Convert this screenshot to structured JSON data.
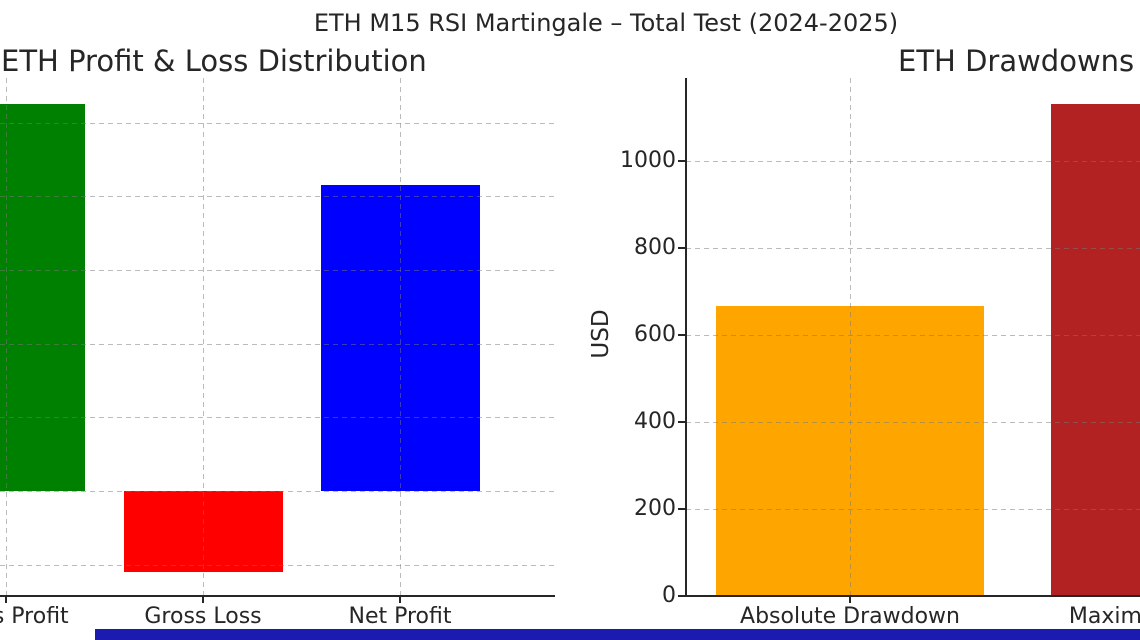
{
  "figure": {
    "suptitle": "ETH M15 RSI Martingale – Total Test (2024-2025)",
    "background": "#ffffff",
    "text_color": "#262626",
    "axis_color": "#262626",
    "grid_color": "#c9c9c9",
    "grid_style": "dashed"
  },
  "chart_data": [
    {
      "type": "bar",
      "title": "ETH Profit & Loss Distribution",
      "categories": [
        "Gross Profit",
        "Gross Loss",
        "Net Profit"
      ],
      "values": [
        5250,
        -1100,
        4150
      ],
      "colors": [
        "#008000",
        "#ff0000",
        "#0000ff"
      ],
      "xlabel": "",
      "ylabel": "",
      "ylim": [
        -1410,
        5600
      ],
      "grid": "dashed",
      "legend": "none"
    },
    {
      "type": "bar",
      "title": "ETH Drawdowns",
      "categories": [
        "Absolute Drawdown",
        "Maximum Drawdown"
      ],
      "values": [
        667,
        1130
      ],
      "colors": [
        "#ffa500",
        "#b22222"
      ],
      "xlabel": "",
      "ylabel": "USD",
      "ylim": [
        0,
        1190
      ],
      "yticks": [
        0,
        200,
        400,
        600,
        800,
        1000
      ],
      "grid": "dashed",
      "legend": "none"
    }
  ],
  "bottom_bar": {
    "color": "#1b1baf"
  }
}
